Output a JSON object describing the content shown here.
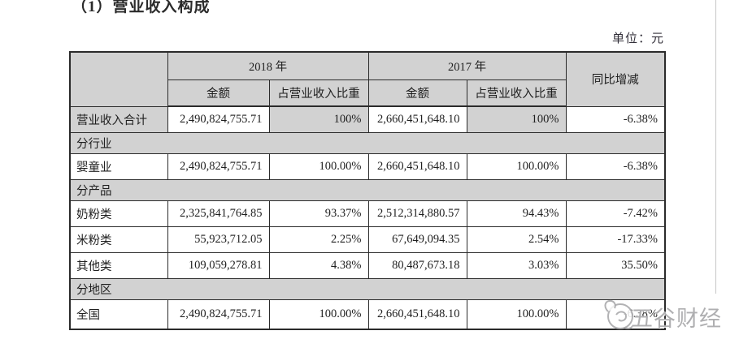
{
  "page": {
    "title": "（1）营业收入构成",
    "unit_label": "单位：元"
  },
  "table": {
    "header": {
      "year_2018": "2018 年",
      "year_2017": "2017 年",
      "yoy": "同比增减",
      "amount_2018": "金额",
      "share_2018": "占营业收入比重",
      "amount_2017": "金额",
      "share_2017": "占营业收入比重"
    },
    "rows": [
      {
        "type": "data",
        "label": "营业收入合计",
        "amount_2018": "2,490,824,755.71",
        "share_2018": "100%",
        "amount_2017": "2,660,451,648.10",
        "share_2017": "100%",
        "yoy": "-6.38%",
        "highlight": true
      },
      {
        "type": "section",
        "label": "分行业"
      },
      {
        "type": "data",
        "label": "婴童业",
        "amount_2018": "2,490,824,755.71",
        "share_2018": "100.00%",
        "amount_2017": "2,660,451,648.10",
        "share_2017": "100.00%",
        "yoy": "-6.38%"
      },
      {
        "type": "section",
        "label": "分产品"
      },
      {
        "type": "data",
        "label": "奶粉类",
        "amount_2018": "2,325,841,764.85",
        "share_2018": "93.37%",
        "amount_2017": "2,512,314,880.57",
        "share_2017": "94.43%",
        "yoy": "-7.42%"
      },
      {
        "type": "data",
        "label": "米粉类",
        "amount_2018": "55,923,712.05",
        "share_2018": "2.25%",
        "amount_2017": "67,649,094.35",
        "share_2017": "2.54%",
        "yoy": "-17.33%"
      },
      {
        "type": "data",
        "label": "其他类",
        "amount_2018": "109,059,278.81",
        "share_2018": "4.38%",
        "amount_2017": "80,487,673.18",
        "share_2017": "3.03%",
        "yoy": "35.50%"
      },
      {
        "type": "section",
        "label": "分地区"
      },
      {
        "type": "data",
        "label": "全国",
        "amount_2018": "2,490,824,755.71",
        "share_2018": "100.00%",
        "amount_2017": "2,660,451,648.10",
        "share_2017": "100.00%",
        "yoy": "-6.38%"
      }
    ]
  },
  "watermark": {
    "text": "五谷财经",
    "logo": "wugu-caijing-logo"
  },
  "colors": {
    "header_bg": "#d2d2d2",
    "border": "#2b2b2b",
    "text": "#1f1f1f",
    "watermark": "#9e9ea0",
    "page_edge": "#c7c7c7"
  }
}
